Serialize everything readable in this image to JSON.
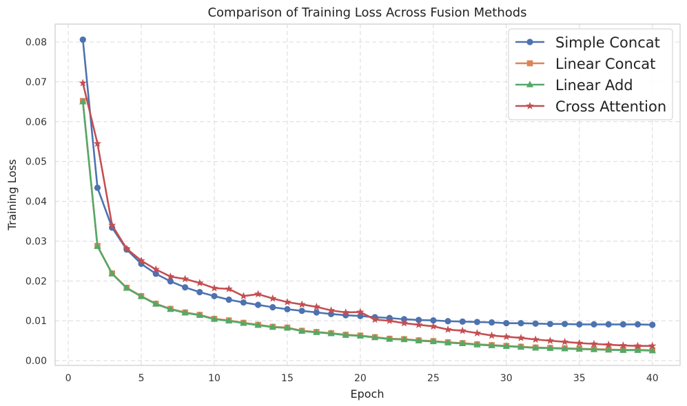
{
  "chart_data": {
    "type": "line",
    "title": "Comparison of Training Loss Across Fusion Methods",
    "xlabel": "Epoch",
    "ylabel": "Training Loss",
    "xlim": [
      -0.9,
      41.9
    ],
    "ylim": [
      -0.0012,
      0.0845
    ],
    "xticks": [
      0,
      5,
      10,
      15,
      20,
      25,
      30,
      35,
      40
    ],
    "yticks": [
      0.0,
      0.01,
      0.02,
      0.03,
      0.04,
      0.05,
      0.06,
      0.07,
      0.08
    ],
    "xtick_labels": [
      "0",
      "5",
      "10",
      "15",
      "20",
      "25",
      "30",
      "35",
      "40"
    ],
    "ytick_labels": [
      "0.00",
      "0.01",
      "0.02",
      "0.03",
      "0.04",
      "0.05",
      "0.06",
      "0.07",
      "0.08"
    ],
    "grid": true,
    "legend_position": "top-right",
    "x": [
      1,
      2,
      3,
      4,
      5,
      6,
      7,
      8,
      9,
      10,
      11,
      12,
      13,
      14,
      15,
      16,
      17,
      18,
      19,
      20,
      21,
      22,
      23,
      24,
      25,
      26,
      27,
      28,
      29,
      30,
      31,
      32,
      33,
      34,
      35,
      36,
      37,
      38,
      39,
      40
    ],
    "series": [
      {
        "name": "Simple Concat",
        "color": "#4c72b0",
        "marker": "circle",
        "values": [
          0.0806,
          0.0434,
          0.0334,
          0.0279,
          0.0243,
          0.0218,
          0.0199,
          0.0184,
          0.0172,
          0.0162,
          0.0153,
          0.0146,
          0.014,
          0.0134,
          0.0129,
          0.0125,
          0.0121,
          0.0117,
          0.0114,
          0.0112,
          0.0109,
          0.0107,
          0.0104,
          0.0102,
          0.0101,
          0.0099,
          0.0098,
          0.0097,
          0.0096,
          0.0094,
          0.0094,
          0.0093,
          0.0092,
          0.0092,
          0.0091,
          0.0091,
          0.0091,
          0.0091,
          0.0091,
          0.009
        ]
      },
      {
        "name": "Linear Concat",
        "color": "#dd8452",
        "marker": "square",
        "values": [
          0.0652,
          0.0288,
          0.0219,
          0.0183,
          0.0162,
          0.0143,
          0.013,
          0.0121,
          0.0115,
          0.0105,
          0.0101,
          0.0095,
          0.009,
          0.0085,
          0.0083,
          0.0075,
          0.0072,
          0.0069,
          0.0065,
          0.0063,
          0.0059,
          0.0055,
          0.0054,
          0.0051,
          0.0049,
          0.0046,
          0.0044,
          0.0041,
          0.0039,
          0.0037,
          0.0035,
          0.0033,
          0.0032,
          0.0031,
          0.003,
          0.0029,
          0.0028,
          0.0027,
          0.0027,
          0.0026
        ]
      },
      {
        "name": "Linear Add",
        "color": "#55a868",
        "marker": "triangle",
        "values": [
          0.065,
          0.0287,
          0.0218,
          0.0182,
          0.0161,
          0.0142,
          0.0129,
          0.012,
          0.0114,
          0.0104,
          0.01,
          0.0094,
          0.0089,
          0.0084,
          0.0082,
          0.0074,
          0.0071,
          0.0068,
          0.0064,
          0.0062,
          0.0058,
          0.0054,
          0.0053,
          0.005,
          0.0048,
          0.0045,
          0.0043,
          0.004,
          0.0038,
          0.0036,
          0.0034,
          0.0032,
          0.0031,
          0.003,
          0.0029,
          0.0028,
          0.0027,
          0.0026,
          0.0026,
          0.0025
        ]
      },
      {
        "name": "Cross Attention",
        "color": "#c44e52",
        "marker": "star",
        "values": [
          0.0697,
          0.0545,
          0.034,
          0.0281,
          0.0251,
          0.0229,
          0.0211,
          0.0205,
          0.0195,
          0.0182,
          0.018,
          0.0162,
          0.0167,
          0.0156,
          0.0147,
          0.0141,
          0.0135,
          0.0126,
          0.0121,
          0.0122,
          0.0103,
          0.01,
          0.0094,
          0.009,
          0.0086,
          0.0078,
          0.0075,
          0.0069,
          0.0063,
          0.006,
          0.0057,
          0.0053,
          0.005,
          0.0047,
          0.0044,
          0.0042,
          0.004,
          0.0038,
          0.0037,
          0.0037
        ]
      }
    ]
  }
}
